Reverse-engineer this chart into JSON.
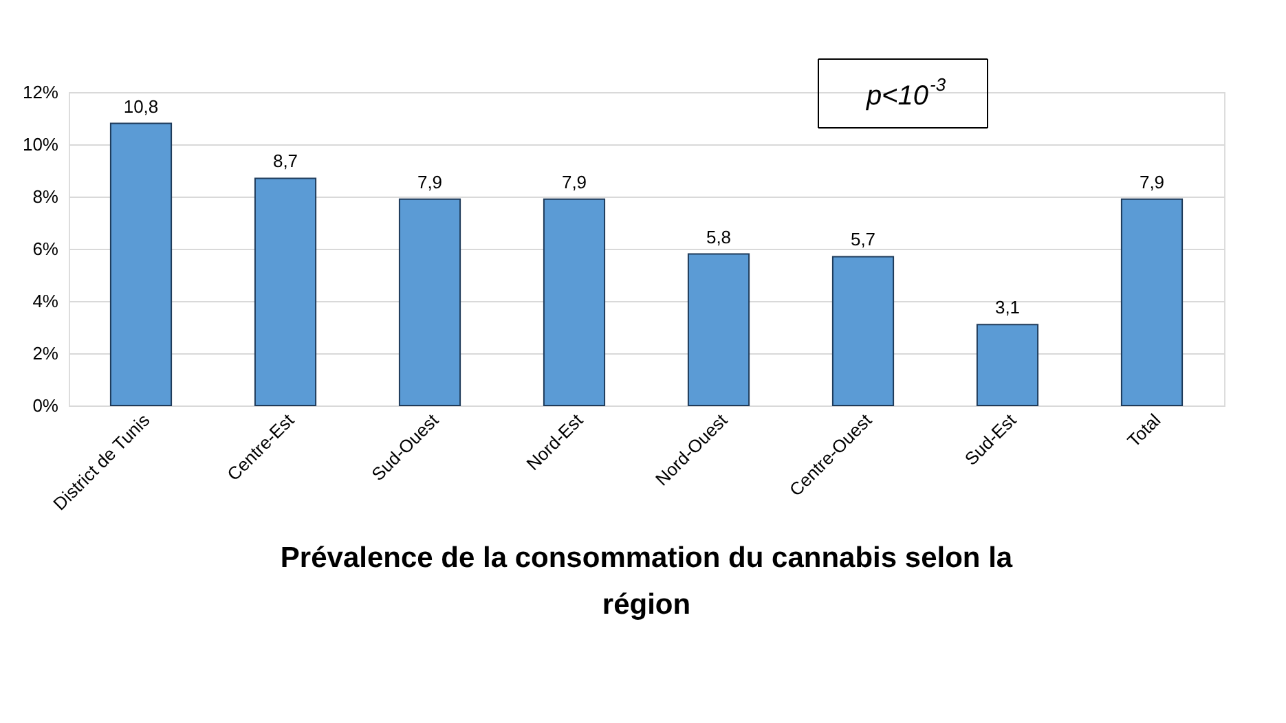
{
  "chart_data": {
    "type": "bar",
    "title": "Prévalence de la consommation du cannabis selon la région",
    "categories": [
      "District de Tunis",
      "Centre-Est",
      "Sud-Ouest",
      "Nord-Est",
      "Nord-Ouest",
      "Centre-Ouest",
      "Sud-Est",
      "Total"
    ],
    "values": [
      10.8,
      8.7,
      7.9,
      7.9,
      5.8,
      5.7,
      3.1,
      7.9
    ],
    "value_labels": [
      "10,8",
      "8,7",
      "7,9",
      "7,9",
      "5,8",
      "5,7",
      "3,1",
      "7,9"
    ],
    "color": "#5b9bd5",
    "ylim": [
      0,
      12
    ],
    "yticks": [
      {
        "value": 0,
        "label": "0%"
      },
      {
        "value": 2,
        "label": "2%"
      },
      {
        "value": 4,
        "label": "4%"
      },
      {
        "value": 6,
        "label": "6%"
      },
      {
        "value": 8,
        "label": "8%"
      },
      {
        "value": 10,
        "label": "10%"
      },
      {
        "value": 12,
        "label": "12%"
      }
    ],
    "grid": "y",
    "annotations": [
      "p<10$^{-3}$"
    ]
  }
}
